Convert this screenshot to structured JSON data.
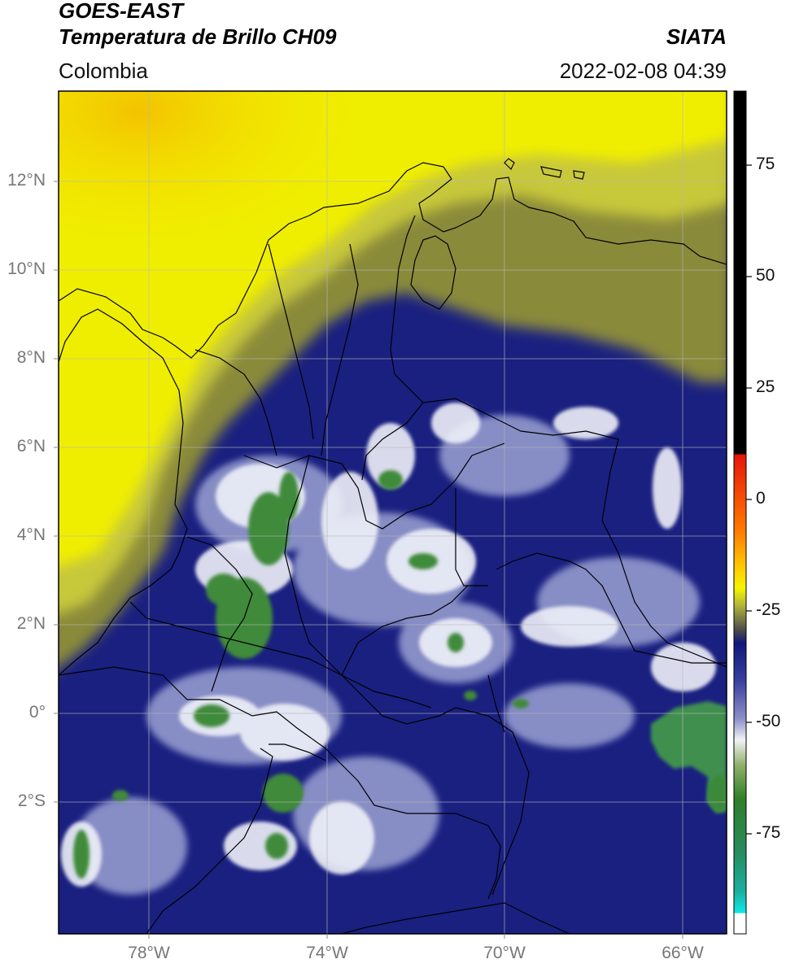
{
  "header": {
    "title_line1": "GOES-EAST",
    "title_line2": "Temperatura de Brillo CH09",
    "region": "Colombia",
    "agency": "SIATA",
    "datetime": "2022-02-08 04:39"
  },
  "map": {
    "lat_range": [
      -5.0,
      14.0
    ],
    "lon_range": [
      -80.0,
      -65.0
    ],
    "lat_ticks": [
      {
        "value": 12,
        "label": "12°N"
      },
      {
        "value": 10,
        "label": "10°N"
      },
      {
        "value": 8,
        "label": "8°N"
      },
      {
        "value": 6,
        "label": "6°N"
      },
      {
        "value": 4,
        "label": "4°N"
      },
      {
        "value": 2,
        "label": "2°N"
      },
      {
        "value": 0,
        "label": "0°"
      },
      {
        "value": -2,
        "label": "2°S"
      }
    ],
    "lon_ticks": [
      {
        "value": -78,
        "label": "78°W"
      },
      {
        "value": -74,
        "label": "74°W"
      },
      {
        "value": -70,
        "label": "70°W"
      },
      {
        "value": -66,
        "label": "66°W"
      }
    ],
    "gridlines": true,
    "colors": {
      "clear_sky_warm": "#f2f200",
      "transition": "#8a8a3a",
      "mid_cloud": "#1a2080",
      "high_cloud": "#e8ecf5",
      "deep_convection": "#3a8a3a",
      "coastline": "#000000"
    }
  },
  "colorbar": {
    "range": [
      -95,
      90
    ],
    "ticks": [
      {
        "value": 75,
        "label": "75"
      },
      {
        "value": 50,
        "label": "50"
      },
      {
        "value": 25,
        "label": "25"
      },
      {
        "value": 0,
        "label": "0"
      },
      {
        "value": -25,
        "label": "-25"
      },
      {
        "value": -50,
        "label": "-50"
      },
      {
        "value": -75,
        "label": "-75"
      }
    ]
  }
}
